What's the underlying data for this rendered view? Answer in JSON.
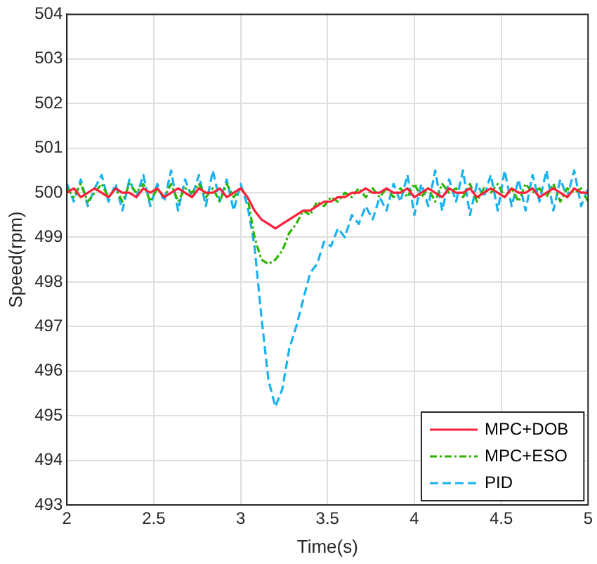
{
  "chart_data": {
    "type": "line",
    "xlabel": "Time(s)",
    "ylabel": "Speed(rpm)",
    "x": [
      2.0,
      2.04,
      2.08,
      2.12,
      2.16,
      2.2,
      2.24,
      2.28,
      2.32,
      2.36,
      2.4,
      2.44,
      2.48,
      2.52,
      2.56,
      2.6,
      2.64,
      2.68,
      2.72,
      2.76,
      2.8,
      2.84,
      2.88,
      2.92,
      2.96,
      3.0,
      3.04,
      3.08,
      3.12,
      3.16,
      3.2,
      3.24,
      3.28,
      3.32,
      3.36,
      3.4,
      3.44,
      3.48,
      3.52,
      3.56,
      3.6,
      3.64,
      3.68,
      3.72,
      3.76,
      3.8,
      3.84,
      3.88,
      3.92,
      3.96,
      4.0,
      4.04,
      4.08,
      4.12,
      4.16,
      4.2,
      4.24,
      4.28,
      4.32,
      4.36,
      4.4,
      4.44,
      4.48,
      4.52,
      4.56,
      4.6,
      4.64,
      4.68,
      4.72,
      4.76,
      4.8,
      4.84,
      4.88,
      4.92,
      4.96,
      5.0
    ],
    "series": [
      {
        "name": "MPC+DOB",
        "color": "#ff1f3a",
        "line_style": "solid",
        "values": [
          500.0,
          500.1,
          499.9,
          500.0,
          500.1,
          500.0,
          499.9,
          500.1,
          500.0,
          500.0,
          499.9,
          500.1,
          500.0,
          500.1,
          499.9,
          500.0,
          500.1,
          500.0,
          499.9,
          500.1,
          500.0,
          500.0,
          500.1,
          499.9,
          500.0,
          500.1,
          499.9,
          499.6,
          499.4,
          499.3,
          499.2,
          499.3,
          499.4,
          499.5,
          499.6,
          499.6,
          499.7,
          499.8,
          499.8,
          499.9,
          499.9,
          500.0,
          500.0,
          500.1,
          500.0,
          500.0,
          500.1,
          500.0,
          500.0,
          500.1,
          499.9,
          500.0,
          500.1,
          500.0,
          499.9,
          500.1,
          500.0,
          500.0,
          500.1,
          499.9,
          500.0,
          500.1,
          500.0,
          499.9,
          500.1,
          500.0,
          500.0,
          500.1,
          499.9,
          500.0,
          500.1,
          500.0,
          499.9,
          500.1,
          500.0,
          500.0
        ]
      },
      {
        "name": "MPC+ESO",
        "color": "#2db400",
        "line_style": "dotted",
        "values": [
          500.1,
          499.9,
          500.2,
          499.8,
          500.0,
          500.2,
          499.9,
          500.1,
          499.8,
          500.2,
          500.0,
          500.2,
          499.8,
          500.1,
          499.9,
          500.2,
          499.8,
          500.1,
          500.0,
          500.2,
          499.9,
          500.1,
          499.8,
          500.2,
          499.9,
          500.1,
          499.9,
          499.0,
          498.5,
          498.4,
          498.5,
          498.7,
          499.1,
          499.3,
          499.6,
          499.5,
          499.8,
          499.7,
          499.9,
          499.8,
          500.0,
          499.9,
          500.1,
          499.9,
          500.1,
          499.9,
          500.1,
          499.9,
          500.1,
          499.9,
          500.2,
          499.9,
          500.1,
          499.8,
          500.2,
          500.0,
          500.1,
          499.9,
          500.2,
          499.8,
          500.1,
          500.0,
          500.2,
          499.9,
          500.1,
          499.8,
          500.2,
          500.0,
          500.1,
          499.9,
          500.2,
          499.8,
          500.1,
          500.0,
          500.1,
          499.8
        ]
      },
      {
        "name": "PID",
        "color": "#1ab2ee",
        "line_style": "dashed",
        "values": [
          500.2,
          499.8,
          500.3,
          499.7,
          500.1,
          500.4,
          499.8,
          500.2,
          499.6,
          500.3,
          499.9,
          500.4,
          499.7,
          500.2,
          499.8,
          500.5,
          499.6,
          500.3,
          499.9,
          500.4,
          499.7,
          500.5,
          499.8,
          500.3,
          499.6,
          500.2,
          499.7,
          498.8,
          497.2,
          495.8,
          495.2,
          495.6,
          496.5,
          497.0,
          497.6,
          498.2,
          498.4,
          498.9,
          498.8,
          499.2,
          499.0,
          499.5,
          499.3,
          499.7,
          499.4,
          499.9,
          499.6,
          500.2,
          499.8,
          500.4,
          499.5,
          500.2,
          499.7,
          500.5,
          499.6,
          500.3,
          499.8,
          500.5,
          499.5,
          500.2,
          499.9,
          500.4,
          499.6,
          500.5,
          499.7,
          500.3,
          499.6,
          500.4,
          499.8,
          500.5,
          499.6,
          500.3,
          499.9,
          500.5,
          499.7,
          500.1
        ]
      }
    ],
    "xlim": [
      2,
      5
    ],
    "xticks": [
      2,
      2.5,
      3,
      3.5,
      4,
      4.5,
      5
    ],
    "ylim": [
      493,
      504
    ],
    "yticks": [
      493,
      494,
      495,
      496,
      497,
      498,
      499,
      500,
      501,
      502,
      503,
      504
    ],
    "grid": true,
    "legend": "bottom right",
    "marker": "none"
  }
}
